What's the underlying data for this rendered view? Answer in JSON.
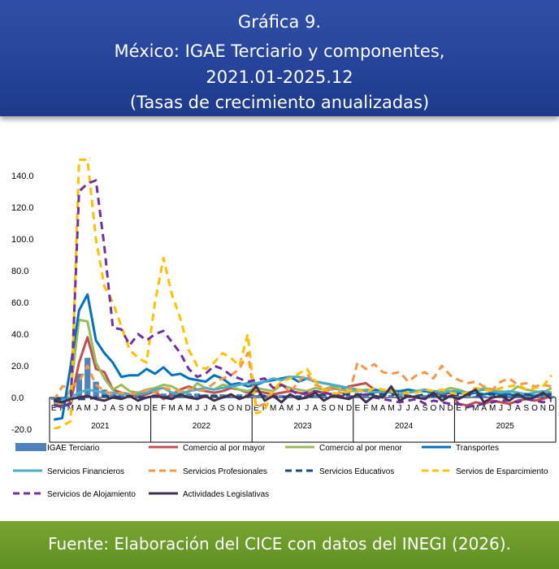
{
  "header": {
    "line1": "Gráfica 9.",
    "line2": "México: IGAE Terciario y componentes,",
    "line3": "2021.01-2025.12",
    "line4": "(Tasas de crecimiento anualizadas)"
  },
  "footer": {
    "source": "Fuente: Elaboración del CICE con datos del INEGI (2026)."
  },
  "chart_data": {
    "type": "line",
    "ylim": [
      -20,
      140
    ],
    "y_ticks": [
      "-20.0",
      "0.0",
      "20.0",
      "40.0",
      "60.0",
      "80.0",
      "100.0",
      "120.0",
      "140.0"
    ],
    "grid": false,
    "legend_position": "bottom",
    "year_labels": [
      "2021",
      "2022",
      "2023",
      "2024",
      "2025"
    ],
    "month_labels": [
      "E",
      "F",
      "M",
      "A",
      "M",
      "J",
      "J",
      "A",
      "S",
      "O",
      "N",
      "D"
    ],
    "bar_series": {
      "name": "IGAE Terciario",
      "color": "#4f81bd",
      "values": [
        -1.5,
        -2.0,
        0.5,
        15.0,
        25.0,
        10.0,
        5.0,
        3.0,
        2.0,
        1.0,
        1.0,
        0.5,
        2.0,
        2.5,
        3.0,
        3.0,
        2.5,
        2.5,
        2.0,
        2.0,
        2.0,
        2.0,
        2.0,
        2.0,
        1.5,
        1.5,
        1.5,
        1.5,
        1.5,
        1.5,
        1.5,
        1.5,
        1.5,
        1.5,
        1.5,
        1.5,
        1.5,
        1.5,
        1.5,
        1.5,
        1.5,
        1.5,
        1.5,
        1.5,
        1.5,
        1.5,
        1.5,
        1.5,
        1.0,
        1.0,
        1.0,
        1.0,
        1.0,
        1.0,
        1.0,
        1.0,
        1.0,
        1.0,
        1.0,
        1.0
      ]
    },
    "series": [
      {
        "name": "Comercio al por mayor",
        "color": "#c0504d",
        "dash": false,
        "values": [
          -4,
          -6,
          -3,
          22,
          38,
          18,
          16,
          5,
          3,
          2,
          1,
          2,
          4,
          -1,
          2,
          5,
          7,
          5,
          4,
          3,
          4,
          6,
          5,
          3,
          4,
          3,
          2,
          3,
          4,
          3,
          2,
          4,
          3,
          6,
          5,
          7,
          8,
          9,
          5,
          3,
          4,
          2,
          3,
          4,
          5,
          3,
          2,
          3,
          -4,
          -5,
          -3,
          -4,
          -2,
          -3,
          -4,
          -2,
          -1,
          -2,
          -1,
          1
        ]
      },
      {
        "name": "Comercio al por menor",
        "color": "#9bbb59",
        "dash": false,
        "values": [
          -3,
          -4,
          5,
          49,
          48,
          22,
          12,
          5,
          8,
          4,
          3,
          5,
          6,
          8,
          7,
          4,
          3,
          9,
          6,
          5,
          8,
          7,
          5,
          4,
          6,
          5,
          4,
          8,
          6,
          5,
          4,
          6,
          5,
          7,
          5,
          4,
          4,
          5,
          4,
          3,
          5,
          4,
          3,
          4,
          5,
          4,
          4,
          6,
          5,
          3,
          4,
          6,
          5,
          4,
          3,
          7,
          5,
          4,
          3,
          6
        ]
      },
      {
        "name": "Transportes",
        "color": "#0070c0",
        "dash": false,
        "values": [
          -14,
          -13,
          20,
          55,
          65,
          36,
          28,
          22,
          13,
          14,
          14,
          18,
          15,
          19,
          14,
          15,
          12,
          11,
          10,
          14,
          12,
          8,
          9,
          7,
          8,
          10,
          11,
          12,
          13,
          10,
          12,
          10,
          9,
          8,
          7,
          6,
          5,
          4,
          5,
          4,
          3,
          4,
          5,
          4,
          4,
          3,
          3,
          3,
          3,
          2,
          3,
          2,
          3,
          2,
          2,
          1,
          2,
          1,
          2,
          2
        ]
      },
      {
        "name": "Servicios Financieros",
        "color": "#4bacc6",
        "dash": false,
        "values": [
          -3,
          -2,
          0,
          3,
          5,
          4,
          3,
          3,
          2,
          2,
          2,
          3,
          5,
          6,
          3,
          2,
          4,
          5,
          6,
          5,
          6,
          7,
          8,
          9,
          9,
          10,
          12,
          11,
          13,
          13,
          12,
          10,
          9,
          8,
          7,
          6,
          5,
          4,
          3,
          4,
          3,
          2,
          3,
          4,
          5,
          4,
          3,
          4,
          4,
          3,
          4,
          5,
          4,
          3,
          4,
          3,
          2,
          3,
          4,
          3
        ]
      },
      {
        "name": "Servicios Profesionales",
        "color": "#f79646",
        "dash": true,
        "values": [
          -2,
          7,
          7,
          10,
          20,
          8,
          4,
          2,
          3,
          2,
          3,
          5,
          3,
          6,
          5,
          4,
          6,
          4,
          5,
          9,
          12,
          14,
          18,
          28,
          -6,
          -4,
          5,
          9,
          3,
          10,
          15,
          8,
          6,
          5,
          3,
          2,
          22,
          18,
          21,
          16,
          15,
          16,
          10,
          14,
          16,
          12,
          20,
          14,
          11,
          9,
          10,
          7,
          5,
          10,
          12,
          8,
          9,
          7,
          8,
          7
        ]
      },
      {
        "name": "Servicios Educativos",
        "color": "#1f497d",
        "dash": true,
        "values": [
          -1,
          -1,
          -2,
          -1,
          -1,
          0,
          1,
          1,
          0,
          1,
          0,
          0,
          1,
          0,
          1,
          1,
          0,
          1,
          1,
          1,
          0,
          1,
          0,
          1,
          2,
          1,
          1,
          0,
          1,
          0,
          1,
          1,
          2,
          1,
          2,
          2,
          2,
          2,
          2,
          2,
          2,
          2,
          1,
          1,
          2,
          1,
          1,
          1,
          2,
          2,
          1,
          2,
          2,
          1,
          1,
          2,
          2,
          1,
          2,
          2
        ]
      },
      {
        "name": "Servios de Esparcimiento",
        "color": "#ffc000",
        "dash": true,
        "values": [
          -20,
          -18,
          -15,
          150,
          150,
          100,
          70,
          60,
          45,
          30,
          25,
          22,
          60,
          88,
          65,
          50,
          30,
          20,
          18,
          22,
          28,
          25,
          20,
          40,
          -10,
          -8,
          5,
          10,
          12,
          15,
          18,
          10,
          5,
          3,
          2,
          4,
          5,
          3,
          6,
          5,
          4,
          2,
          3,
          3,
          5,
          4,
          5,
          3,
          2,
          3,
          6,
          5,
          4,
          6,
          7,
          8,
          5,
          6,
          7,
          14
        ]
      },
      {
        "name": "Servicios de Alojamiento",
        "color": "#7030a0",
        "dash": true,
        "values": [
          -5,
          -6,
          -4,
          130,
          135,
          137,
          95,
          44,
          43,
          33,
          40,
          36,
          40,
          42,
          35,
          28,
          18,
          13,
          15,
          20,
          18,
          14,
          12,
          10,
          11,
          12,
          6,
          8,
          5,
          2,
          3,
          4,
          3,
          2,
          1,
          0,
          1,
          2,
          0,
          -1,
          -2,
          -3,
          -2,
          -1,
          -4,
          -2,
          -3,
          -4,
          -4,
          -6,
          -5,
          -4,
          -3,
          -2,
          -2,
          -3,
          -1,
          -2,
          -3,
          -2
        ]
      },
      {
        "name": "Actividades Legislativas",
        "color": "#403152",
        "dash": false,
        "values": [
          -2,
          -3,
          -1,
          0,
          1,
          -1,
          -2,
          0,
          -1,
          1,
          -2,
          0,
          1,
          0,
          -1,
          2,
          0,
          -1,
          1,
          -2,
          0,
          2,
          -1,
          1,
          7,
          -2,
          1,
          -3,
          2,
          -1,
          0,
          3,
          -2,
          1,
          0,
          -1,
          2,
          -3,
          1,
          0,
          7,
          -2,
          1,
          0,
          -1,
          3,
          -2,
          1,
          -1,
          2,
          5,
          -3,
          0,
          1,
          -2,
          2,
          -1,
          0,
          3,
          -1
        ]
      }
    ]
  }
}
